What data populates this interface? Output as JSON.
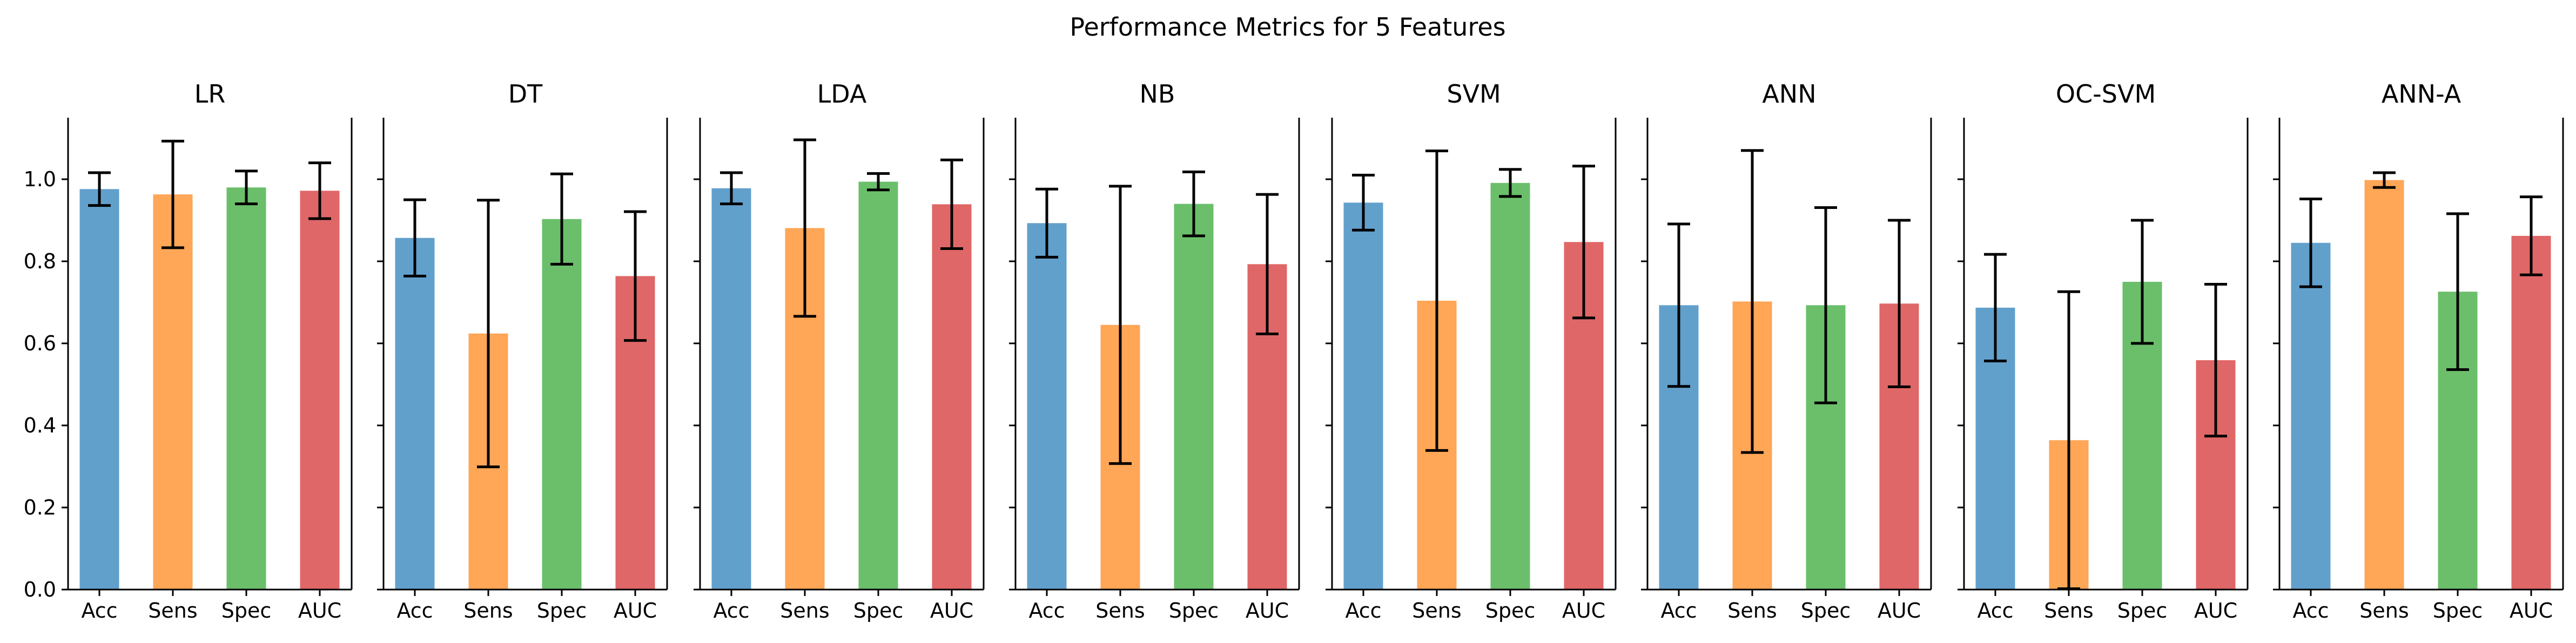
{
  "chart_data": {
    "type": "bar",
    "title": "Performance Metrics for 5 Features",
    "ylim": [
      0,
      1.15
    ],
    "yticks": [
      "0.0",
      "0.2",
      "0.4",
      "0.6",
      "0.8",
      "1.0"
    ],
    "categories": [
      "Acc",
      "Sens",
      "Spec",
      "AUC"
    ],
    "colors": [
      "#62a0cc",
      "#ffa657",
      "#6bbf6b",
      "#e06767"
    ],
    "grid": false,
    "panels": [
      {
        "title": "LR",
        "values": [
          0.976,
          0.963,
          0.98,
          0.972
        ],
        "errors": [
          0.04,
          0.13,
          0.04,
          0.068
        ]
      },
      {
        "title": "DT",
        "values": [
          0.857,
          0.624,
          0.903,
          0.764
        ],
        "errors": [
          0.093,
          0.325,
          0.11,
          0.157
        ]
      },
      {
        "title": "LDA",
        "values": [
          0.978,
          0.881,
          0.994,
          0.939
        ],
        "errors": [
          0.038,
          0.215,
          0.02,
          0.108
        ]
      },
      {
        "title": "NB",
        "values": [
          0.893,
          0.645,
          0.94,
          0.793
        ],
        "errors": [
          0.083,
          0.338,
          0.078,
          0.17
        ]
      },
      {
        "title": "SVM",
        "values": [
          0.943,
          0.704,
          0.991,
          0.847
        ],
        "errors": [
          0.067,
          0.365,
          0.033,
          0.185
        ]
      },
      {
        "title": "ANN",
        "values": [
          0.693,
          0.702,
          0.693,
          0.697
        ],
        "errors": [
          0.198,
          0.368,
          0.238,
          0.203
        ]
      },
      {
        "title": "OC-SVM",
        "values": [
          0.687,
          0.364,
          0.75,
          0.559
        ],
        "errors": [
          0.13,
          0.362,
          0.15,
          0.185
        ]
      },
      {
        "title": "ANN-A",
        "values": [
          0.845,
          0.998,
          0.726,
          0.862
        ],
        "errors": [
          0.107,
          0.018,
          0.19,
          0.095
        ]
      }
    ]
  }
}
